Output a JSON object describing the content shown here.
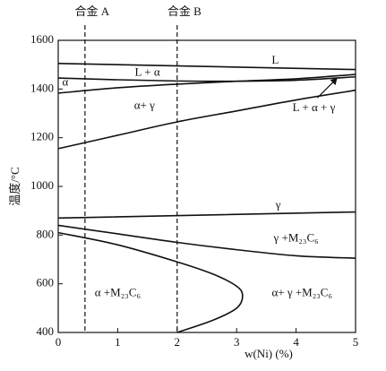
{
  "chart_data": {
    "type": "line",
    "xlabel": "w(Ni) (%)",
    "ylabel": "温度/°C",
    "xlim": [
      0,
      5
    ],
    "ylim": [
      400,
      1600
    ],
    "xticks": [
      0,
      1,
      2,
      3,
      4,
      5
    ],
    "yticks": [
      400,
      600,
      800,
      1000,
      1200,
      1400,
      1600
    ],
    "color": "#111111",
    "lines": [
      {
        "x": [
          0,
          5
        ],
        "values": [
          1505,
          1480
        ]
      },
      {
        "x": [
          0,
          1,
          2,
          3,
          4,
          5
        ],
        "values": [
          1445,
          1438,
          1433,
          1432,
          1436,
          1450
        ]
      },
      {
        "x": [
          0,
          1,
          2,
          3,
          4,
          5
        ],
        "values": [
          1383,
          1405,
          1420,
          1432,
          1442,
          1460
        ]
      },
      {
        "x": [
          0,
          1,
          2,
          3,
          4,
          5
        ],
        "values": [
          1155,
          1210,
          1265,
          1310,
          1355,
          1395
        ]
      },
      {
        "x": [
          0,
          5
        ],
        "values": [
          870,
          895
        ]
      },
      {
        "x": [
          0,
          1,
          2,
          3,
          4,
          5
        ],
        "values": [
          840,
          805,
          770,
          740,
          715,
          705
        ]
      },
      {
        "x": [
          0,
          1,
          2,
          2.6,
          3.0,
          3.1,
          3.0,
          2.6,
          2.0
        ],
        "values": [
          810,
          760,
          690,
          640,
          590,
          550,
          500,
          450,
          400
        ]
      }
    ],
    "alloys": [
      {
        "label": "合金 A",
        "x": 0.45
      },
      {
        "label": "合金 B",
        "x": 2.0
      }
    ],
    "annotations": [
      {
        "text": "L",
        "x": 3.65,
        "y": 1515
      },
      {
        "text": "L + α",
        "x": 1.5,
        "y": 1465
      },
      {
        "text": "α",
        "x": 0.12,
        "y": 1425
      },
      {
        "text": "α+ γ",
        "x": 1.45,
        "y": 1330
      },
      {
        "text": "L + α + γ",
        "x": 4.3,
        "y": 1320
      },
      {
        "text": "γ",
        "x": 3.7,
        "y": 920
      },
      {
        "text": "γ +M₂₃C₆",
        "x": 4.0,
        "y": 785
      },
      {
        "text": "α +M₂₃C₆",
        "x": 1.0,
        "y": 560
      },
      {
        "text": "α+ γ +M₂₃C₆",
        "x": 4.1,
        "y": 560
      }
    ]
  }
}
